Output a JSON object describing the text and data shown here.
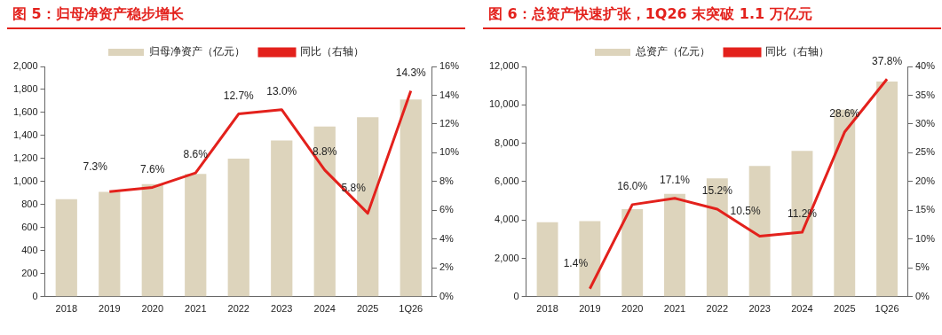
{
  "chart_data": [
    {
      "type": "bar",
      "title": "图 5：归母净资产稳步增长",
      "categories": [
        "2018",
        "2019",
        "2020",
        "2021",
        "2022",
        "2023",
        "2024",
        "2025",
        "1Q26"
      ],
      "legend": "top",
      "series": [
        {
          "name": "归母净资产（亿元）",
          "color": "#ddd4bc",
          "values": [
            848,
            910,
            979,
            1067,
            1200,
            1357,
            1478,
            1560,
            1713
          ]
        },
        {
          "name": "同比（右轴）",
          "type": "line",
          "axis": "y2",
          "color": "#e3211c",
          "values": [
            null,
            7.3,
            7.6,
            8.6,
            12.7,
            13.0,
            8.8,
            5.8,
            14.3
          ],
          "value_labels": [
            null,
            "7.3%",
            "7.6%",
            "8.6%",
            "12.7%",
            "13.0%",
            "8.8%",
            "5.8%",
            "14.3%"
          ]
        }
      ],
      "ylim": [
        0,
        2000
      ],
      "yticks": [
        0,
        200,
        400,
        600,
        800,
        {
          "value": 1000,
          "label": "1,000"
        },
        {
          "value": 1200,
          "label": "1,200"
        },
        {
          "value": 1400,
          "label": "1,400"
        },
        {
          "value": 1600,
          "label": "1,600"
        },
        {
          "value": 1800,
          "label": "1,800"
        },
        {
          "value": 2000,
          "label": "2,000"
        }
      ],
      "y2lim": [
        0,
        16
      ],
      "y2ticks": [
        {
          "value": 0,
          "label": "0%"
        },
        {
          "value": 2,
          "label": "2%"
        },
        {
          "value": 4,
          "label": "4%"
        },
        {
          "value": 6,
          "label": "6%"
        },
        {
          "value": 8,
          "label": "8%"
        },
        {
          "value": 10,
          "label": "10%"
        },
        {
          "value": 12,
          "label": "12%"
        },
        {
          "value": 14,
          "label": "14%"
        },
        {
          "value": 16,
          "label": "16%"
        }
      ]
    },
    {
      "type": "bar",
      "title": "图 6：总资产快速扩张，1Q26 末突破 1.1 万亿元",
      "categories": [
        "2018",
        "2019",
        "2020",
        "2021",
        "2022",
        "2023",
        "2024",
        "2025",
        "1Q26"
      ],
      "legend": "top",
      "series": [
        {
          "name": "总资产（亿元）",
          "color": "#ddd4bc",
          "values": [
            3880,
            3940,
            4560,
            5360,
            6170,
            6810,
            7600,
            9750,
            11220
          ]
        },
        {
          "name": "同比（右轴）",
          "type": "line",
          "axis": "y2",
          "color": "#e3211c",
          "values": [
            null,
            1.4,
            16.0,
            17.1,
            15.2,
            10.5,
            11.2,
            28.6,
            37.8
          ],
          "value_labels": [
            null,
            "1.4%",
            "16.0%",
            "17.1%",
            "15.2%",
            "10.5%",
            "11.2%",
            "28.6%",
            "37.8%"
          ]
        }
      ],
      "ylim": [
        0,
        12000
      ],
      "yticks": [
        0,
        {
          "value": 2000,
          "label": "2,000"
        },
        {
          "value": 4000,
          "label": "4,000"
        },
        {
          "value": 6000,
          "label": "6,000"
        },
        {
          "value": 8000,
          "label": "8,000"
        },
        {
          "value": 10000,
          "label": "10,000"
        },
        {
          "value": 12000,
          "label": "12,000"
        }
      ],
      "y2lim": [
        0,
        40
      ],
      "y2ticks": [
        {
          "value": 0,
          "label": "0%"
        },
        {
          "value": 5,
          "label": "5%"
        },
        {
          "value": 10,
          "label": "10%"
        },
        {
          "value": 15,
          "label": "15%"
        },
        {
          "value": 20,
          "label": "20%"
        },
        {
          "value": 25,
          "label": "25%"
        },
        {
          "value": 30,
          "label": "30%"
        },
        {
          "value": 35,
          "label": "35%"
        },
        {
          "value": 40,
          "label": "40%"
        }
      ]
    }
  ]
}
